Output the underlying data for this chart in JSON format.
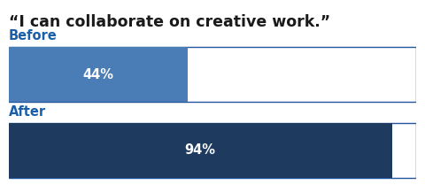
{
  "title": "“I can collaborate on creative work.”",
  "categories": [
    "Before",
    "After"
  ],
  "values": [
    44,
    94
  ],
  "max_value": 100,
  "bar_colors": [
    "#4a7cb5",
    "#1e3a5f"
  ],
  "label_color": "#1a5fa8",
  "title_color": "#1a1a1a",
  "background_color": "#ffffff",
  "bar_text_color": "#ffffff",
  "border_color": "#2255a0",
  "title_fontsize": 12.5,
  "label_fontsize": 10.5,
  "value_fontsize": 10.5
}
